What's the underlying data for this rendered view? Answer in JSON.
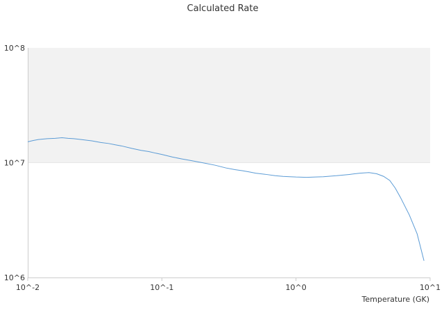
{
  "chart_data": {
    "type": "line",
    "title": "Calculated Rate",
    "xlabel": "Temperature (GK)",
    "ylabel": "",
    "x_scale": "log",
    "y_scale": "log",
    "xlim": [
      0.01,
      10
    ],
    "ylim": [
      1000000,
      100000000
    ],
    "x_ticks": [
      {
        "value": 0.01,
        "label": "10^-2"
      },
      {
        "value": 0.1,
        "label": "10^-1"
      },
      {
        "value": 1,
        "label": "10^0"
      },
      {
        "value": 10,
        "label": "10^1"
      }
    ],
    "y_ticks": [
      {
        "value": 1000000,
        "label": "10^6"
      },
      {
        "value": 10000000,
        "label": "10^7"
      },
      {
        "value": 100000000,
        "label": "10^8"
      }
    ],
    "grid": false,
    "colors": {
      "line": "#5b9bd5",
      "band_fill": "#f2f2f2",
      "axis": "#cccccc",
      "text": "#333333"
    },
    "series": [
      {
        "x": [
          0.01,
          0.011,
          0.012,
          0.014,
          0.016,
          0.018,
          0.02,
          0.022,
          0.025,
          0.03,
          0.035,
          0.04,
          0.045,
          0.05,
          0.06,
          0.07,
          0.08,
          0.09,
          0.1,
          0.12,
          0.14,
          0.16,
          0.2,
          0.25,
          0.3,
          0.35,
          0.4,
          0.45,
          0.5,
          0.6,
          0.7,
          0.8,
          0.9,
          1.0,
          1.2,
          1.4,
          1.6,
          2.0,
          2.5,
          3.0,
          3.5,
          4.0,
          4.5,
          5.0,
          5.5,
          6.0,
          7.0,
          8.0,
          9.0
        ],
        "values": [
          15200000,
          15600000,
          15900000,
          16200000,
          16300000,
          16500000,
          16300000,
          16200000,
          15900000,
          15500000,
          15000000,
          14700000,
          14300000,
          14000000,
          13300000,
          12800000,
          12500000,
          12100000,
          11800000,
          11200000,
          10800000,
          10500000,
          10000000,
          9500000,
          9000000,
          8700000,
          8500000,
          8300000,
          8100000,
          7900000,
          7700000,
          7600000,
          7550000,
          7500000,
          7450000,
          7500000,
          7550000,
          7700000,
          7900000,
          8100000,
          8200000,
          8000000,
          7600000,
          7000000,
          6000000,
          5000000,
          3500000,
          2400000,
          1400000
        ]
      }
    ]
  }
}
